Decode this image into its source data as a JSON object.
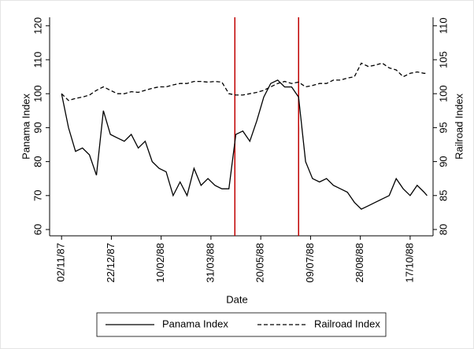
{
  "chart_data": {
    "type": "line",
    "x_label": "Date",
    "y_label": "Panama Index",
    "y2_label": "Railroad Index",
    "x": [
      "1987-11-02",
      "1987-11-09",
      "1987-11-16",
      "1987-11-23",
      "1987-11-30",
      "1987-12-07",
      "1987-12-14",
      "1987-12-21",
      "1987-12-28",
      "1988-01-04",
      "1988-01-11",
      "1988-01-18",
      "1988-01-25",
      "1988-02-01",
      "1988-02-08",
      "1988-02-15",
      "1988-02-22",
      "1988-02-29",
      "1988-03-07",
      "1988-03-14",
      "1988-03-21",
      "1988-03-28",
      "1988-04-04",
      "1988-04-11",
      "1988-04-18",
      "1988-04-25",
      "1988-05-02",
      "1988-05-09",
      "1988-05-16",
      "1988-05-23",
      "1988-05-30",
      "1988-06-06",
      "1988-06-13",
      "1988-06-20",
      "1988-06-27",
      "1988-07-04",
      "1988-07-11",
      "1988-07-18",
      "1988-07-25",
      "1988-08-01",
      "1988-08-08",
      "1988-08-15",
      "1988-08-22",
      "1988-08-29",
      "1988-09-05",
      "1988-09-12",
      "1988-09-19",
      "1988-09-26",
      "1988-10-03",
      "1988-10-10",
      "1988-10-17",
      "1988-10-24",
      "1988-10-31",
      "1988-11-03"
    ],
    "series": [
      {
        "name": "Panama Index",
        "color": "#000000",
        "style": "solid",
        "axis": "y",
        "values": [
          100,
          90,
          83,
          84,
          82,
          76,
          95,
          88,
          87,
          86,
          88,
          84,
          86,
          80,
          78,
          77,
          70,
          74,
          70,
          78,
          73,
          75,
          73,
          72,
          72,
          88,
          89,
          86,
          92,
          99,
          103,
          104,
          102,
          102,
          99,
          80,
          75,
          74,
          75,
          73,
          72,
          71,
          68,
          66,
          67,
          68,
          69,
          70,
          75,
          72,
          70,
          73,
          71,
          70
        ]
      },
      {
        "name": "Railroad Index",
        "color": "#000000",
        "style": "dashed",
        "axis": "y2",
        "values": [
          100,
          99,
          99.3,
          99.5,
          99.8,
          100.5,
          101,
          100.5,
          100,
          100,
          100.3,
          100.2,
          100.5,
          100.8,
          101,
          101,
          101.3,
          101.5,
          101.5,
          101.8,
          101.8,
          101.7,
          101.8,
          101.7,
          100,
          99.8,
          99.8,
          100,
          100.2,
          100.5,
          101,
          101.5,
          101.8,
          101.5,
          101.7,
          101,
          101.2,
          101.5,
          101.5,
          102,
          102,
          102.3,
          102.5,
          104.5,
          104,
          104.2,
          104.5,
          103.8,
          103.5,
          102.5,
          103,
          103.2,
          103,
          103
        ]
      }
    ],
    "vlines": [
      "1988-04-24",
      "1988-06-27"
    ],
    "vline_color": "#c00000",
    "xlim": [
      "1987-10-21",
      "1988-11-09"
    ],
    "xticks": [
      {
        "value": "1987-11-02",
        "label": "02/11/87"
      },
      {
        "value": "1987-12-22",
        "label": "22/12/87"
      },
      {
        "value": "1988-02-10",
        "label": "10/02/88"
      },
      {
        "value": "1988-03-31",
        "label": "31/03/88"
      },
      {
        "value": "1988-05-20",
        "label": "20/05/88"
      },
      {
        "value": "1988-07-09",
        "label": "09/07/88"
      },
      {
        "value": "1988-08-28",
        "label": "28/08/88"
      },
      {
        "value": "1988-10-17",
        "label": "17/10/88"
      }
    ],
    "ylim": [
      58.15,
      122.5
    ],
    "yticks": [
      60,
      70,
      80,
      90,
      100,
      110,
      120
    ],
    "y2lim": [
      79.07,
      111.25
    ],
    "y2ticks": [
      80,
      85,
      90,
      95,
      100,
      105,
      110
    ],
    "legend": "bottom"
  }
}
